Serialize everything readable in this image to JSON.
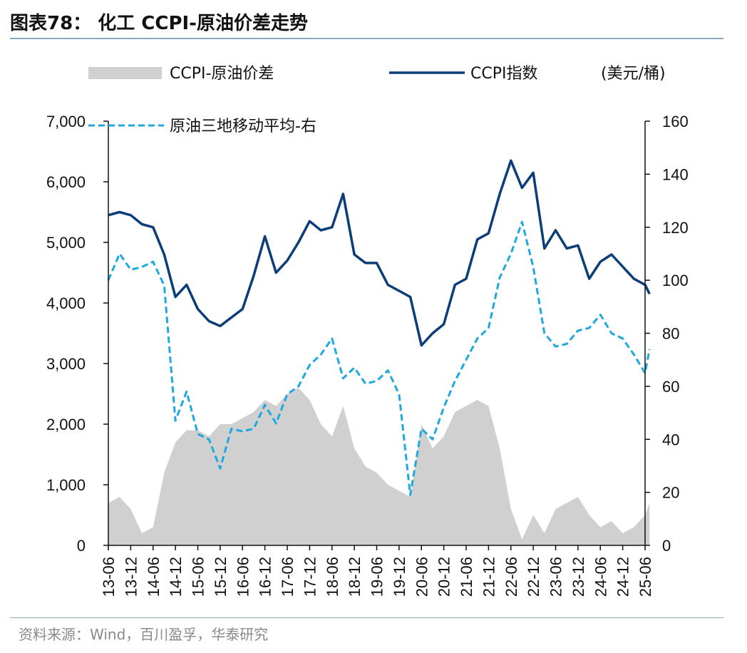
{
  "header": {
    "title": "图表78： 化工 CCPI-原油价差走势"
  },
  "footer": {
    "source": "资料来源：Wind，百川盈孚，华泰研究"
  },
  "colors": {
    "spread": "#d0d0d0",
    "ccpi": "#0b3d78",
    "oil": "#1fa8e0",
    "axis": "#111111"
  },
  "chart_data": {
    "type": "line",
    "unit_label": "(美元/桶)",
    "legend": [
      {
        "key": "spread",
        "label": "CCPI-原油价差",
        "style": "area"
      },
      {
        "key": "ccpi",
        "label": "CCPI指数",
        "style": "solid-line"
      },
      {
        "key": "oil",
        "label": "原油三地移动平均-右",
        "style": "dashed-line"
      }
    ],
    "x_ticks": [
      "13-06",
      "13-12",
      "14-06",
      "14-12",
      "15-06",
      "15-12",
      "16-06",
      "16-12",
      "17-06",
      "17-12",
      "18-06",
      "18-12",
      "19-06",
      "19-12",
      "20-06",
      "20-12",
      "21-06",
      "21-12",
      "22-06",
      "22-12",
      "23-06",
      "23-12",
      "24-06",
      "24-12",
      "25-06"
    ],
    "left_axis": {
      "min": 0,
      "max": 7000,
      "ticks": [
        0,
        1000,
        2000,
        3000,
        4000,
        5000,
        6000,
        7000
      ],
      "tick_labels": [
        "0",
        "1,000",
        "2,000",
        "3,000",
        "4,000",
        "5,000",
        "6,000",
        "7,000"
      ]
    },
    "right_axis": {
      "min": 0,
      "max": 160,
      "ticks": [
        0,
        20,
        40,
        60,
        80,
        100,
        120,
        140,
        160
      ],
      "tick_labels": [
        "0",
        "20",
        "40",
        "60",
        "80",
        "100",
        "120",
        "140",
        "160"
      ]
    },
    "series": [
      {
        "key": "ccpi",
        "name": "CCPI指数",
        "axis": "left",
        "x": [
          0,
          0.5,
          1,
          1.5,
          2,
          2.5,
          3,
          3.5,
          4,
          4.5,
          5,
          5.5,
          6,
          6.5,
          7,
          7.5,
          8,
          8.5,
          9,
          9.5,
          10,
          10.5,
          11,
          11.5,
          12,
          12.5,
          13,
          13.5,
          14,
          14.5,
          15,
          15.5,
          16,
          16.5,
          17,
          17.5,
          18,
          18.5,
          19,
          19.5,
          20,
          20.5,
          21,
          21.5,
          22,
          22.5,
          23,
          23.5,
          24,
          24.2
        ],
        "values": [
          5450,
          5500,
          5450,
          5300,
          5250,
          4800,
          4100,
          4300,
          3900,
          3700,
          3620,
          3760,
          3900,
          4450,
          5100,
          4500,
          4700,
          5000,
          5350,
          5200,
          5250,
          5800,
          4800,
          4660,
          4660,
          4300,
          4200,
          4100,
          3300,
          3500,
          3650,
          4300,
          4400,
          5050,
          5150,
          5800,
          6350,
          5900,
          6150,
          4900,
          5200,
          4900,
          4950,
          4400,
          4680,
          4800,
          4600,
          4400,
          4300,
          4150
        ]
      },
      {
        "key": "oil",
        "name": "原油三地移动平均-右",
        "axis": "right",
        "x": [
          0,
          0.5,
          1,
          1.5,
          2,
          2.5,
          3,
          3.5,
          4,
          4.5,
          5,
          5.5,
          6,
          6.5,
          7,
          7.5,
          8,
          8.5,
          9,
          9.5,
          10,
          10.5,
          11,
          11.5,
          12,
          12.5,
          13,
          13.5,
          14,
          14.5,
          15,
          15.5,
          16,
          16.5,
          17,
          17.5,
          18,
          18.5,
          19,
          19.5,
          20,
          20.5,
          21,
          21.5,
          22,
          22.5,
          23,
          23.5,
          24,
          24.2
        ],
        "values": [
          100,
          110,
          104,
          105,
          107,
          98,
          47,
          58,
          42,
          40,
          29,
          44,
          43,
          44,
          53,
          46,
          57,
          60,
          68,
          72,
          78,
          63,
          67,
          61,
          62,
          66,
          57,
          19,
          44,
          40,
          52,
          62,
          70,
          78,
          82,
          101,
          110,
          122,
          105,
          80,
          75,
          76,
          81,
          82,
          87,
          80,
          78,
          72,
          65,
          74
        ]
      },
      {
        "key": "spread",
        "name": "CCPI-原油价差",
        "axis": "left",
        "x": [
          0,
          0.5,
          1,
          1.5,
          2,
          2.5,
          3,
          3.5,
          4,
          4.5,
          5,
          5.5,
          6,
          6.5,
          7,
          7.5,
          8,
          8.5,
          9,
          9.5,
          10,
          10.5,
          11,
          11.5,
          12,
          12.5,
          13,
          13.5,
          14,
          14.5,
          15,
          15.5,
          16,
          16.5,
          17,
          17.5,
          18,
          18.5,
          19,
          19.5,
          20,
          20.5,
          21,
          21.5,
          22,
          22.5,
          23,
          23.5,
          24,
          24.2
        ],
        "values": [
          700,
          800,
          600,
          200,
          300,
          1200,
          1700,
          1900,
          1900,
          1800,
          2000,
          2000,
          2100,
          2200,
          2400,
          2300,
          2500,
          2600,
          2400,
          2000,
          1800,
          2300,
          1600,
          1300,
          1200,
          1000,
          900,
          800,
          2000,
          1600,
          1800,
          2200,
          2300,
          2400,
          2300,
          1600,
          600,
          100,
          500,
          200,
          600,
          700,
          800,
          500,
          300,
          400,
          200,
          300,
          500,
          700
        ]
      }
    ]
  }
}
